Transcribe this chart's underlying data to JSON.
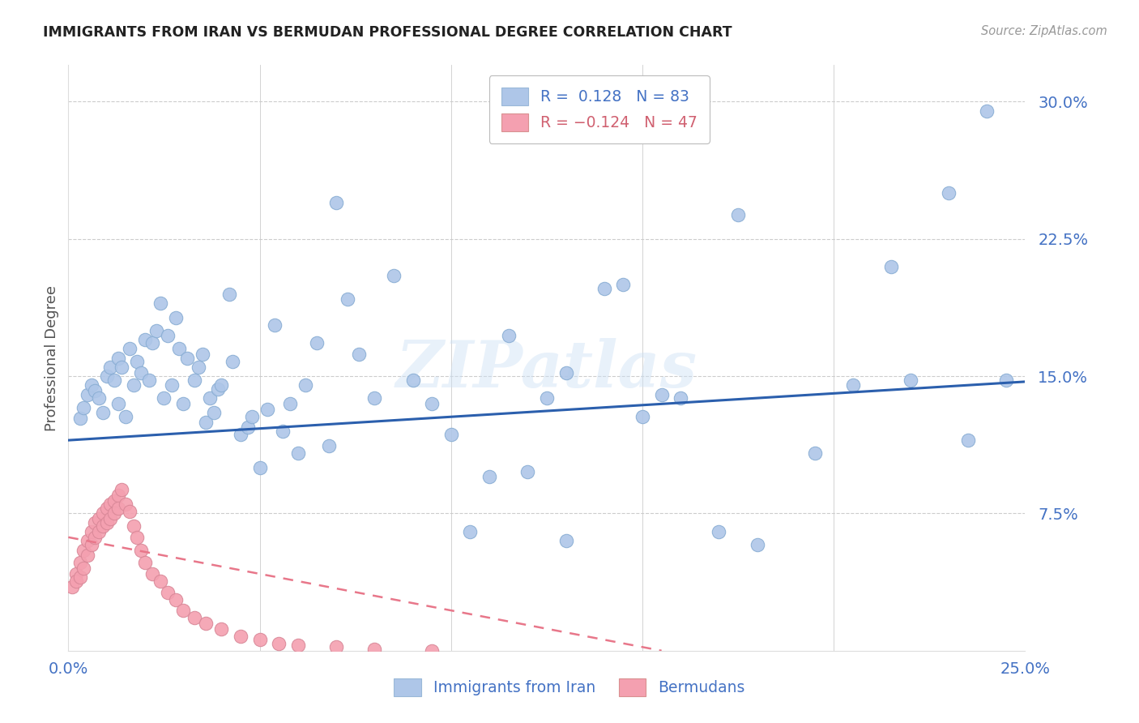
{
  "title": "IMMIGRANTS FROM IRAN VS BERMUDAN PROFESSIONAL DEGREE CORRELATION CHART",
  "source": "Source: ZipAtlas.com",
  "ylabel": "Professional Degree",
  "ytick_labels": [
    "7.5%",
    "15.0%",
    "22.5%",
    "30.0%"
  ],
  "ytick_values": [
    0.075,
    0.15,
    0.225,
    0.3
  ],
  "xlim": [
    0.0,
    0.25
  ],
  "ylim": [
    0.0,
    0.32
  ],
  "iran_color": "#aec6e8",
  "bermuda_color": "#f4a0b0",
  "iran_line_color": "#2b5fad",
  "bermuda_line_color": "#e8778a",
  "watermark_text": "ZIPatlas",
  "iran_line_y0": 0.115,
  "iran_line_y1": 0.147,
  "bermuda_line_y0": 0.062,
  "bermuda_line_y1": 0.0,
  "bermuda_line_x1": 0.155,
  "background_color": "#ffffff",
  "grid_color": "#cccccc",
  "iran_x": [
    0.003,
    0.004,
    0.005,
    0.006,
    0.007,
    0.008,
    0.009,
    0.01,
    0.011,
    0.012,
    0.013,
    0.013,
    0.014,
    0.015,
    0.016,
    0.017,
    0.018,
    0.019,
    0.02,
    0.021,
    0.022,
    0.023,
    0.024,
    0.025,
    0.026,
    0.027,
    0.028,
    0.029,
    0.03,
    0.031,
    0.033,
    0.034,
    0.035,
    0.036,
    0.037,
    0.038,
    0.039,
    0.04,
    0.042,
    0.043,
    0.045,
    0.047,
    0.048,
    0.05,
    0.052,
    0.054,
    0.056,
    0.058,
    0.06,
    0.062,
    0.065,
    0.068,
    0.07,
    0.073,
    0.076,
    0.08,
    0.085,
    0.09,
    0.095,
    0.1,
    0.105,
    0.11,
    0.115,
    0.12,
    0.125,
    0.13,
    0.14,
    0.145,
    0.15,
    0.16,
    0.17,
    0.18,
    0.195,
    0.205,
    0.215,
    0.22,
    0.23,
    0.235,
    0.24,
    0.245,
    0.13,
    0.155,
    0.175
  ],
  "iran_y": [
    0.127,
    0.133,
    0.14,
    0.145,
    0.142,
    0.138,
    0.13,
    0.15,
    0.155,
    0.148,
    0.135,
    0.16,
    0.155,
    0.128,
    0.165,
    0.145,
    0.158,
    0.152,
    0.17,
    0.148,
    0.168,
    0.175,
    0.19,
    0.138,
    0.172,
    0.145,
    0.182,
    0.165,
    0.135,
    0.16,
    0.148,
    0.155,
    0.162,
    0.125,
    0.138,
    0.13,
    0.143,
    0.145,
    0.195,
    0.158,
    0.118,
    0.122,
    0.128,
    0.1,
    0.132,
    0.178,
    0.12,
    0.135,
    0.108,
    0.145,
    0.168,
    0.112,
    0.245,
    0.192,
    0.162,
    0.138,
    0.205,
    0.148,
    0.135,
    0.118,
    0.065,
    0.095,
    0.172,
    0.098,
    0.138,
    0.152,
    0.198,
    0.2,
    0.128,
    0.138,
    0.065,
    0.058,
    0.108,
    0.145,
    0.21,
    0.148,
    0.25,
    0.115,
    0.295,
    0.148,
    0.06,
    0.14,
    0.238
  ],
  "bermuda_x": [
    0.001,
    0.002,
    0.002,
    0.003,
    0.003,
    0.004,
    0.004,
    0.005,
    0.005,
    0.006,
    0.006,
    0.007,
    0.007,
    0.008,
    0.008,
    0.009,
    0.009,
    0.01,
    0.01,
    0.011,
    0.011,
    0.012,
    0.012,
    0.013,
    0.013,
    0.014,
    0.015,
    0.016,
    0.017,
    0.018,
    0.019,
    0.02,
    0.022,
    0.024,
    0.026,
    0.028,
    0.03,
    0.033,
    0.036,
    0.04,
    0.045,
    0.05,
    0.055,
    0.06,
    0.07,
    0.08,
    0.095
  ],
  "bermuda_y": [
    0.035,
    0.042,
    0.038,
    0.048,
    0.04,
    0.055,
    0.045,
    0.06,
    0.052,
    0.065,
    0.058,
    0.07,
    0.062,
    0.072,
    0.065,
    0.075,
    0.068,
    0.078,
    0.07,
    0.08,
    0.072,
    0.082,
    0.075,
    0.085,
    0.078,
    0.088,
    0.08,
    0.076,
    0.068,
    0.062,
    0.055,
    0.048,
    0.042,
    0.038,
    0.032,
    0.028,
    0.022,
    0.018,
    0.015,
    0.012,
    0.008,
    0.006,
    0.004,
    0.003,
    0.002,
    0.001,
    0.0
  ]
}
